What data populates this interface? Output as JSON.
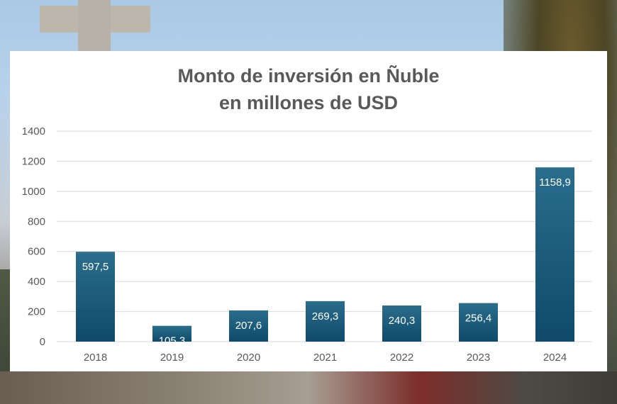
{
  "chart_data": {
    "type": "bar",
    "title": [
      "Monto de inversión en Ñuble",
      "en millones de USD"
    ],
    "categories": [
      "2018",
      "2019",
      "2020",
      "2021",
      "2022",
      "2023",
      "2024"
    ],
    "values": [
      597.5,
      105.3,
      207.6,
      269.3,
      240.3,
      256.4,
      1158.9
    ],
    "data_labels": [
      "597,5",
      "105,3",
      "207,6",
      "269,3",
      "240,3",
      "256,4",
      "1158,9"
    ],
    "ylim": [
      0,
      1400
    ],
    "yticks": [
      "0",
      "200",
      "400",
      "600",
      "800",
      "1000",
      "1200",
      "1400"
    ],
    "grid": true,
    "bar_color_top": "#2a6d8c",
    "bar_color_bottom": "#0f4a6a"
  }
}
